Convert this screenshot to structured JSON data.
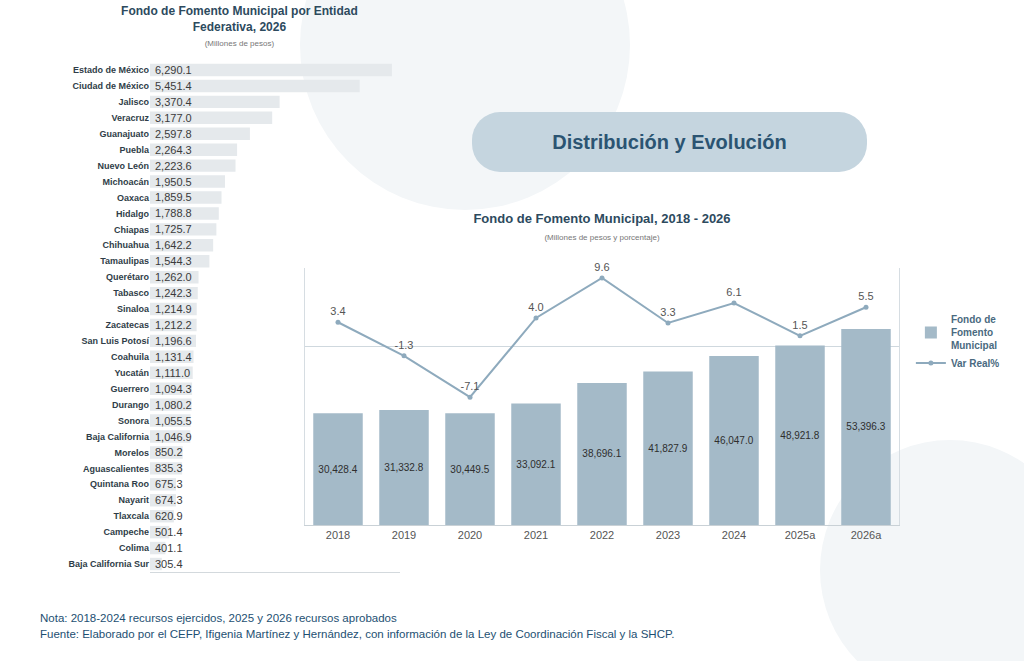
{
  "header": "Distribución y Evolución",
  "note": "Nota: 2018-2024 recursos ejercidos, 2025 y 2026 recursos aprobados",
  "source": "Fuente: Elaborado por el CEFP, Ifigenia Martínez y Hernández, con información de la Ley de Coordinación Fiscal y la SHCP.",
  "chart_data": [
    {
      "type": "bar",
      "title": "Fondo de Fomento Municipal por Entidad Federativa, 2026",
      "subtitle": "(Millones de pesos)",
      "orientation": "horizontal",
      "categories": [
        "Estado de México",
        "Ciudad de México",
        "Jalisco",
        "Veracruz",
        "Guanajuato",
        "Puebla",
        "Nuevo León",
        "Michoacán",
        "Oaxaca",
        "Hidalgo",
        "Chiapas",
        "Chihuahua",
        "Tamaulipas",
        "Querétaro",
        "Tabasco",
        "Sinaloa",
        "Zacatecas",
        "San Luis Potosí",
        "Coahuila",
        "Yucatán",
        "Guerrero",
        "Durango",
        "Sonora",
        "Baja California",
        "Morelos",
        "Aguascalientes",
        "Quintana Roo",
        "Nayarit",
        "Tlaxcala",
        "Campeche",
        "Colima",
        "Baja California Sur"
      ],
      "values": [
        6290.1,
        5451.4,
        3370.4,
        3177.0,
        2597.8,
        2264.3,
        2223.6,
        1950.5,
        1859.5,
        1788.8,
        1725.7,
        1642.2,
        1544.3,
        1262.0,
        1242.3,
        1214.9,
        1212.2,
        1196.6,
        1131.4,
        1111.0,
        1094.3,
        1080.2,
        1055.5,
        1046.9,
        850.2,
        835.3,
        675.3,
        674.3,
        620.9,
        501.4,
        401.1,
        305.4
      ],
      "value_labels": [
        "6,290.1",
        "5,451.4",
        "3,370.4",
        "3,177.0",
        "2,597.8",
        "2,264.3",
        "2,223.6",
        "1,950.5",
        "1,859.5",
        "1,788.8",
        "1,725.7",
        "1,642.2",
        "1,544.3",
        "1,262.0",
        "1,242.3",
        "1,214.9",
        "1,212.2",
        "1,196.6",
        "1,131.4",
        "1,111.0",
        "1,094.3",
        "1,080.2",
        "1,055.5",
        "1,046.9",
        "850.2",
        "835.3",
        "675.3",
        "674.3",
        "620.9",
        "501.4",
        "401.1",
        "305.4"
      ],
      "color": "#e5e9ec",
      "xlim": [
        0,
        6500
      ],
      "data_labels": true,
      "tick_labels": "y",
      "grid": false
    },
    {
      "type": "bar",
      "title": "Fondo de Fomento Municipal, 2018 - 2026",
      "subtitle": "(Millones de pesos y porcentaje)",
      "categories": [
        "2018",
        "2019",
        "2020",
        "2021",
        "2022",
        "2023",
        "2024",
        "2025a",
        "2026a"
      ],
      "series": [
        {
          "name": "Fondo de Fomento Municipal",
          "type": "bar",
          "color": "#a4bac8",
          "values": [
            30428.4,
            31332.8,
            30449.5,
            33092.1,
            38696.1,
            41827.9,
            46047.0,
            48921.8,
            53396.3
          ],
          "value_labels": [
            "30,428.4",
            "31,332.8",
            "30,449.5",
            "33,092.1",
            "38,696.1",
            "41,827.9",
            "46,047.0",
            "48,921.8",
            "53,396.3"
          ]
        },
        {
          "name": "Var Real%",
          "type": "line",
          "axis": "y2",
          "color": "#8eaabd",
          "marker": "circle",
          "values": [
            3.4,
            -1.3,
            -7.1,
            4.0,
            9.6,
            3.3,
            6.1,
            1.5,
            5.5
          ],
          "value_labels": [
            "3.4",
            "-1.3",
            "-7.1",
            "4.0",
            "9.6",
            "3.3",
            "6.1",
            "1.5",
            "5.5"
          ]
        }
      ],
      "ylim": [
        0,
        70000
      ],
      "y2lim": [
        -25,
        11
      ],
      "data_labels": true,
      "tick_labels": "x",
      "legend": "right",
      "grid": false
    }
  ]
}
